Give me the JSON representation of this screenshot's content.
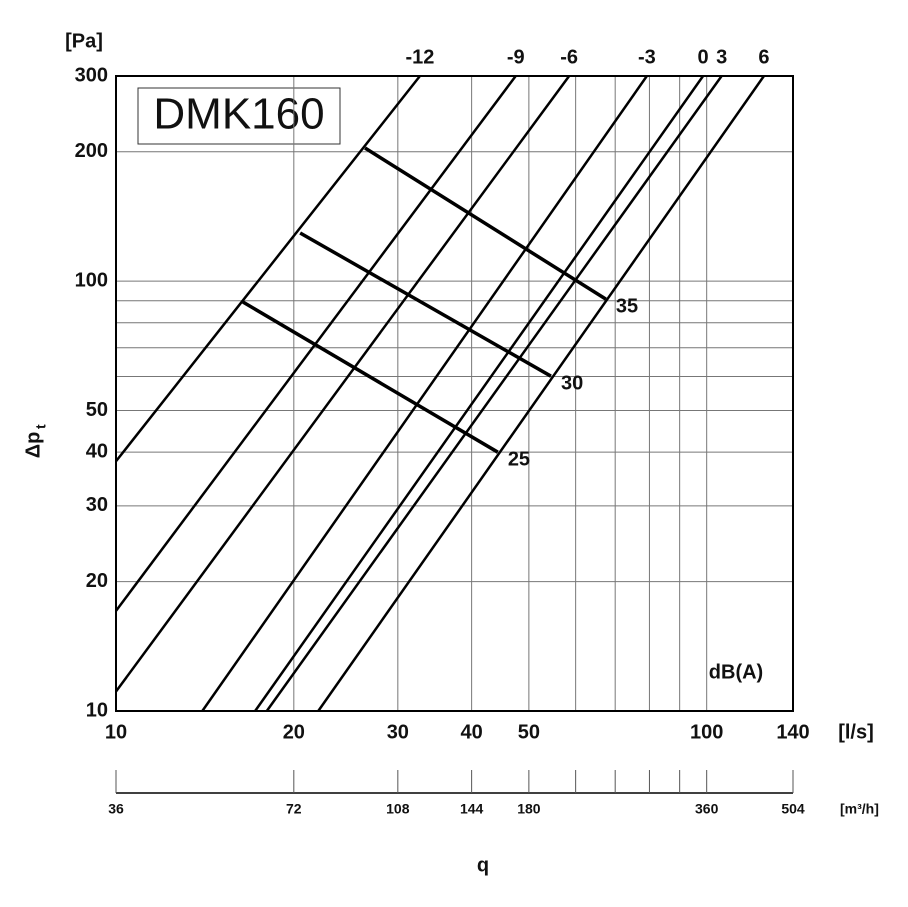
{
  "chart_data": {
    "type": "line",
    "title": "DMK160",
    "ylabel": "Δp",
    "ylabel_subscript": "t",
    "yunit": "[Pa]",
    "xunit": "[l/s]",
    "xlabel": "q",
    "annotation": "dB(A)",
    "xlog": true,
    "ylog": true,
    "grid": true,
    "color": "#000000",
    "xlim": [
      10,
      140
    ],
    "ylim": [
      10,
      300
    ],
    "xticks": [
      10,
      20,
      30,
      40,
      50,
      100,
      140
    ],
    "xminor": [
      60,
      70,
      80,
      90
    ],
    "yticks": [
      10,
      20,
      30,
      40,
      50,
      100,
      200,
      300
    ],
    "yminor": [
      60,
      70,
      80,
      90
    ],
    "x2unit": "[m³/h]",
    "x2lim": [
      36,
      504
    ],
    "x2ticks": [
      36,
      72,
      108,
      144,
      180,
      360,
      504
    ],
    "x2minor": [
      216,
      252,
      288,
      324
    ],
    "series": [
      {
        "name": "-12",
        "x": [
          10,
          32.7
        ],
        "values": [
          38.1,
          300
        ]
      },
      {
        "name": "-9",
        "x": [
          10,
          47.5
        ],
        "values": [
          17.1,
          300
        ]
      },
      {
        "name": "-6",
        "x": [
          10,
          58.5
        ],
        "values": [
          11.1,
          300
        ]
      },
      {
        "name": "-3",
        "x": [
          14.0,
          79.2
        ],
        "values": [
          10,
          300
        ]
      },
      {
        "name": "0",
        "x": [
          17.2,
          98.6
        ],
        "values": [
          10,
          300
        ]
      },
      {
        "name": "3",
        "x": [
          18.0,
          106
        ],
        "values": [
          10,
          300
        ]
      },
      {
        "name": "6",
        "x": [
          22.0,
          125
        ],
        "values": [
          10,
          300
        ]
      }
    ],
    "sound_levels": [
      {
        "name": "35",
        "x": [
          26.4,
          67.5
        ],
        "values": [
          204,
          90.8
        ]
      },
      {
        "name": "30",
        "x": [
          20.5,
          54.5
        ],
        "values": [
          129.4,
          60.1
        ]
      },
      {
        "name": "25",
        "x": [
          16.4,
          44.3
        ],
        "values": [
          89.4,
          40.0
        ]
      }
    ]
  }
}
